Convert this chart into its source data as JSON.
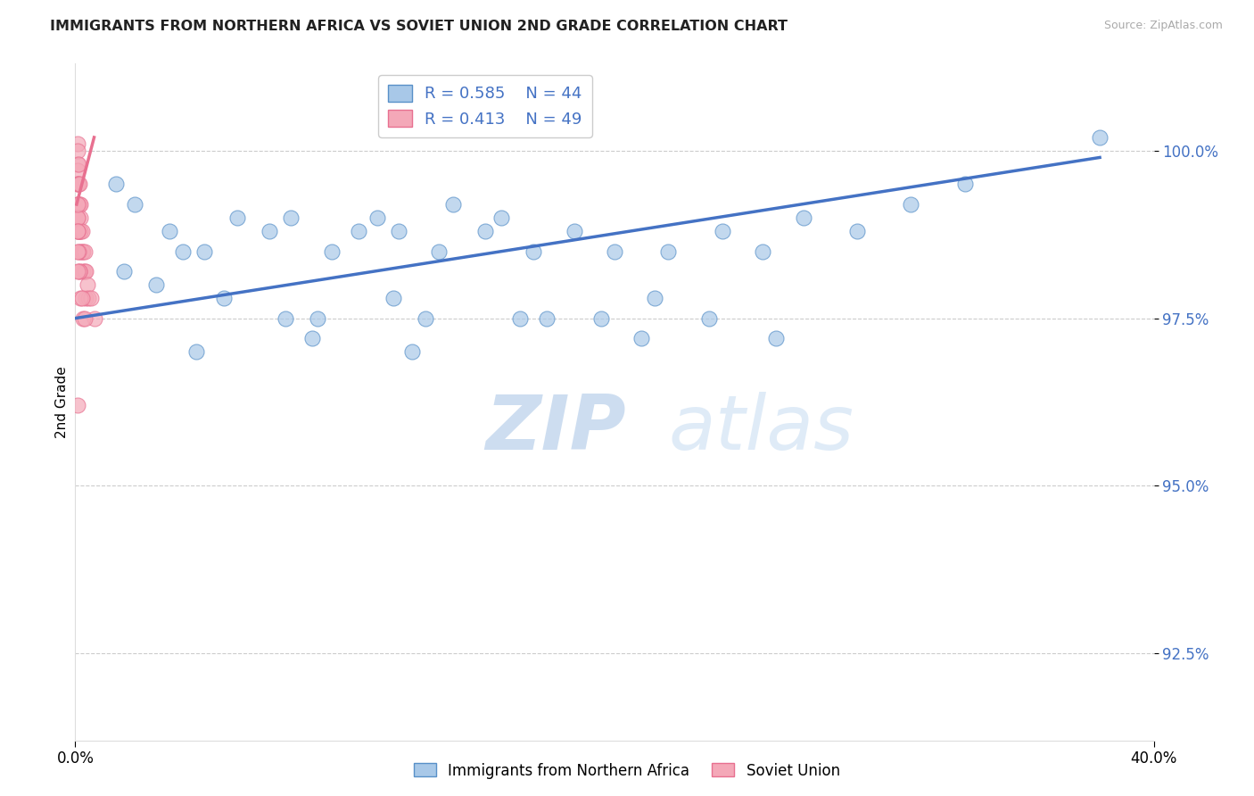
{
  "title": "IMMIGRANTS FROM NORTHERN AFRICA VS SOVIET UNION 2ND GRADE CORRELATION CHART",
  "source": "Source: ZipAtlas.com",
  "ylabel": "2nd Grade",
  "yticks": [
    92.5,
    95.0,
    97.5,
    100.0
  ],
  "ytick_labels": [
    "92.5%",
    "95.0%",
    "97.5%",
    "100.0%"
  ],
  "xmin": 0.0,
  "xmax": 40.0,
  "ymin": 91.2,
  "ymax": 101.3,
  "blue_R": 0.585,
  "blue_N": 44,
  "pink_R": 0.413,
  "pink_N": 49,
  "blue_color": "#a8c8e8",
  "pink_color": "#f4a8b8",
  "blue_edge_color": "#5890c8",
  "pink_edge_color": "#e87090",
  "trend_blue": "#4472c4",
  "trend_pink": "#e87090",
  "legend_text_color": "#4472c4",
  "blue_scatter_x": [
    1.5,
    2.2,
    3.5,
    4.0,
    4.8,
    6.0,
    7.2,
    8.0,
    9.5,
    10.5,
    11.2,
    12.0,
    13.5,
    14.0,
    15.2,
    15.8,
    17.0,
    18.5,
    20.0,
    22.0,
    24.0,
    25.5,
    27.0,
    29.0,
    31.0,
    33.0,
    1.8,
    3.0,
    5.5,
    7.8,
    9.0,
    11.8,
    13.0,
    16.5,
    19.5,
    21.5,
    23.5,
    26.0,
    4.5,
    8.8,
    12.5,
    17.5,
    21.0,
    38.0
  ],
  "blue_scatter_y": [
    99.5,
    99.2,
    98.8,
    98.5,
    98.5,
    99.0,
    98.8,
    99.0,
    98.5,
    98.8,
    99.0,
    98.8,
    98.5,
    99.2,
    98.8,
    99.0,
    98.5,
    98.8,
    98.5,
    98.5,
    98.8,
    98.5,
    99.0,
    98.8,
    99.2,
    99.5,
    98.2,
    98.0,
    97.8,
    97.5,
    97.5,
    97.8,
    97.5,
    97.5,
    97.5,
    97.8,
    97.5,
    97.2,
    97.0,
    97.2,
    97.0,
    97.5,
    97.2,
    100.2
  ],
  "pink_scatter_x": [
    0.08,
    0.08,
    0.08,
    0.08,
    0.08,
    0.1,
    0.1,
    0.1,
    0.1,
    0.1,
    0.1,
    0.12,
    0.12,
    0.12,
    0.12,
    0.15,
    0.15,
    0.15,
    0.18,
    0.18,
    0.2,
    0.2,
    0.2,
    0.25,
    0.25,
    0.3,
    0.3,
    0.35,
    0.35,
    0.4,
    0.4,
    0.45,
    0.5,
    0.6,
    0.7,
    0.08,
    0.1,
    0.12,
    0.15,
    0.2,
    0.3,
    0.08,
    0.1,
    0.15,
    0.25,
    0.35,
    0.08,
    0.1,
    0.08
  ],
  "pink_scatter_y": [
    100.1,
    99.8,
    99.5,
    99.2,
    99.0,
    100.0,
    99.7,
    99.5,
    99.2,
    99.0,
    98.8,
    99.8,
    99.5,
    99.2,
    98.8,
    99.5,
    99.2,
    98.8,
    99.2,
    98.8,
    99.0,
    98.8,
    98.5,
    98.8,
    98.5,
    98.5,
    98.2,
    98.5,
    98.2,
    98.2,
    97.8,
    98.0,
    97.8,
    97.8,
    97.5,
    99.0,
    98.8,
    98.5,
    98.2,
    97.8,
    97.5,
    98.8,
    98.5,
    98.2,
    97.8,
    97.5,
    99.2,
    98.2,
    96.2
  ],
  "blue_trendline_x": [
    0.0,
    38.0
  ],
  "blue_trendline_y": [
    97.5,
    99.9
  ],
  "pink_trendline_x": [
    0.05,
    0.7
  ],
  "pink_trendline_y": [
    99.2,
    100.2
  ]
}
